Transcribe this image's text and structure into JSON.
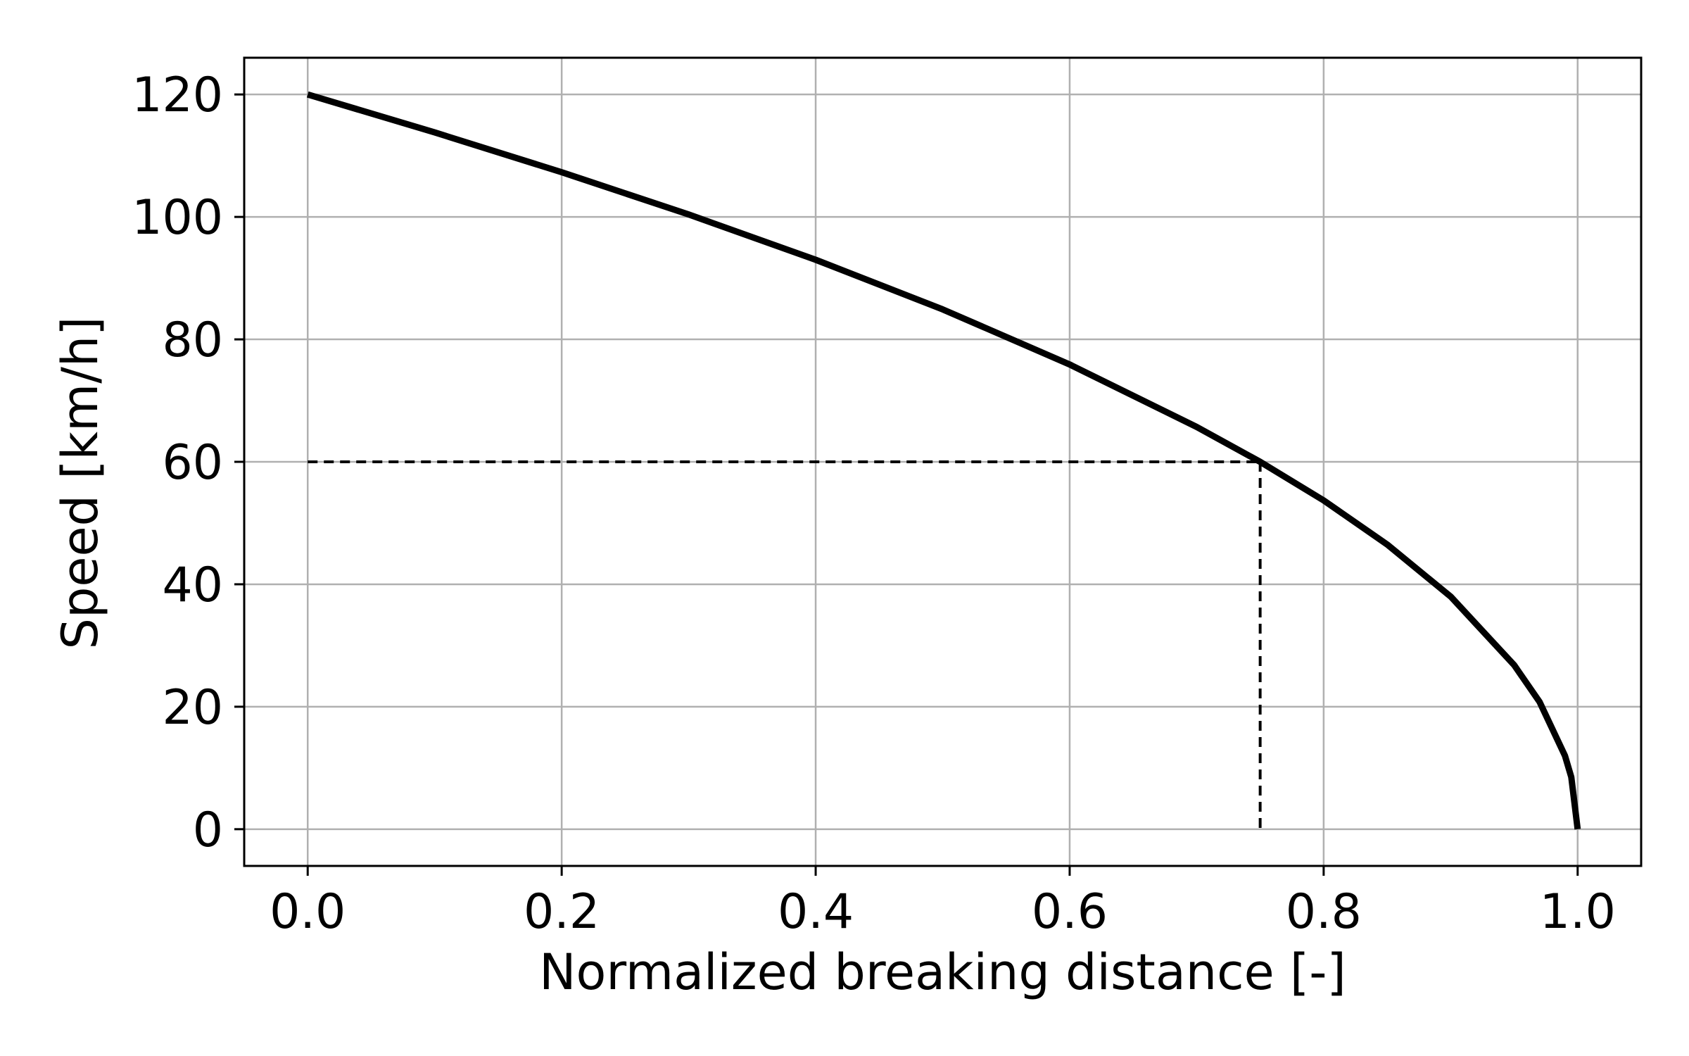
{
  "chart_data": {
    "type": "line",
    "title": "",
    "xlabel": "Normalized breaking distance [-]",
    "ylabel": "Speed [km/h]",
    "xlim": [
      -0.05,
      1.05
    ],
    "ylim": [
      -6,
      126
    ],
    "xticks": [
      0.0,
      0.2,
      0.4,
      0.6,
      0.8,
      1.0
    ],
    "xtick_labels": [
      "0.0",
      "0.2",
      "0.4",
      "0.6",
      "0.8",
      "1.0"
    ],
    "yticks": [
      0,
      20,
      40,
      60,
      80,
      100,
      120
    ],
    "ytick_labels": [
      "0",
      "20",
      "40",
      "60",
      "80",
      "100",
      "120"
    ],
    "grid": true,
    "legend": "none",
    "series": [
      {
        "style": "solid",
        "color": "#000000",
        "x": [
          0.0,
          0.1,
          0.2,
          0.3,
          0.4,
          0.5,
          0.6,
          0.7,
          0.75,
          0.8,
          0.85,
          0.9,
          0.95,
          0.97,
          0.99,
          0.995,
          1.0
        ],
        "y": [
          120,
          113.8,
          107.3,
          100.4,
          93.0,
          84.9,
          75.9,
          65.7,
          60.0,
          53.7,
          46.5,
          38.0,
          26.8,
          20.8,
          12.0,
          8.5,
          0
        ]
      }
    ],
    "annotations": [
      {
        "type": "dashed-line",
        "color": "#000000",
        "x": [
          0.0,
          0.75
        ],
        "y": [
          60,
          60
        ]
      },
      {
        "type": "dashed-line",
        "color": "#000000",
        "x": [
          0.75,
          0.75
        ],
        "y": [
          60,
          0
        ]
      }
    ]
  }
}
